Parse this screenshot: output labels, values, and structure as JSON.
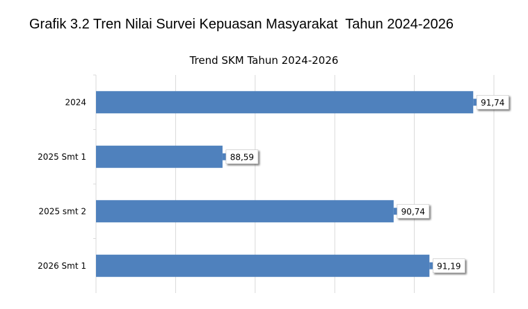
{
  "page": {
    "title": "Grafik 3.2 Tren Nilai Survei Kepuasan Masyarakat  Tahun 2024-2026"
  },
  "chart_data": {
    "type": "bar",
    "orientation": "horizontal",
    "title": "Trend SKM Tahun 2024-2026",
    "categories": [
      "2024",
      "2025 Smt 1",
      "2025 smt 2",
      "2026 Smt 1"
    ],
    "values": [
      91.74,
      88.59,
      90.74,
      91.19
    ],
    "data_labels": [
      "91,74",
      "88,59",
      "90,74",
      "91,19"
    ],
    "xlim": [
      87.0,
      92.0
    ],
    "grid": "vertical",
    "legend": "none",
    "bar_color": "#4F81BD"
  }
}
